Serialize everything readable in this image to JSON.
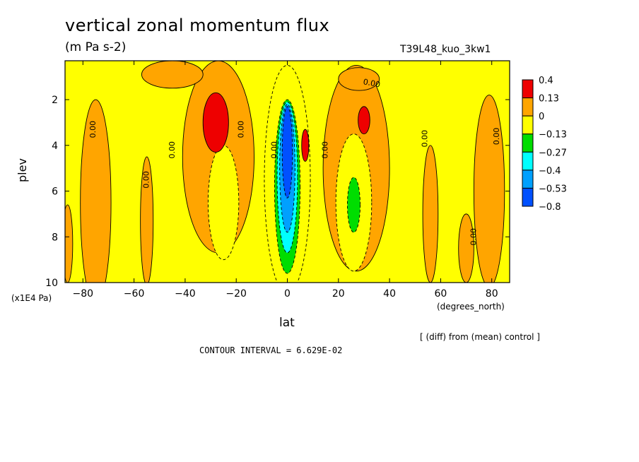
{
  "chart_data": {
    "type": "heatmap",
    "title": "vertical zonal momentum flux",
    "units": "(m Pa s-2)",
    "run_label": "T39L48_kuo_3kw1",
    "xlabel": "lat",
    "x_unit_label": "(degrees_north)",
    "ylabel": "plev",
    "y_unit_label": "(x1E4 Pa)",
    "note": "[ (diff) from (mean) control ]",
    "contour_interval_label": "CONTOUR INTERVAL = 6.629E-02",
    "xlim": [
      -87,
      87
    ],
    "ylim": [
      10,
      0.3
    ],
    "x_ticks": [
      -80,
      -60,
      -40,
      -20,
      0,
      20,
      40,
      60,
      80
    ],
    "x_tick_labels": [
      "−80",
      "−60",
      "−40",
      "−20",
      "0",
      "20",
      "40",
      "60",
      "80"
    ],
    "y_ticks": [
      2,
      4,
      6,
      8,
      10
    ],
    "y_tick_labels": [
      "2",
      "4",
      "6",
      "8",
      "10"
    ],
    "colorbar": {
      "labels": [
        "0.4",
        "0.13",
        "0",
        "−0.13",
        "−0.27",
        "−0.4",
        "−0.53",
        "−0.8"
      ],
      "colors": [
        "#ee0000",
        "#ffa500",
        "#ffff00",
        "#00dd00",
        "#00ffff",
        "#00a0ff",
        "#0050ff"
      ]
    },
    "contour_labels": [
      {
        "text": "0.00",
        "lat": -76,
        "plev": 3.3,
        "rot": -90
      },
      {
        "text": "0.00",
        "lat": -45,
        "plev": 4.2,
        "rot": -90
      },
      {
        "text": "0.00",
        "lat": -55,
        "plev": 5.5,
        "rot": -90
      },
      {
        "text": "0.00",
        "lat": -18,
        "plev": 3.3,
        "rot": -90
      },
      {
        "text": "0.00",
        "lat": -5,
        "plev": 4.2,
        "rot": -90
      },
      {
        "text": "0.00",
        "lat": 15,
        "plev": 4.2,
        "rot": -90
      },
      {
        "text": "0.00",
        "lat": 33,
        "plev": 1.3,
        "rot": 10
      },
      {
        "text": "0.00",
        "lat": 54,
        "plev": 3.7,
        "rot": -90
      },
      {
        "text": "0.00",
        "lat": 82,
        "plev": 3.6,
        "rot": -90
      },
      {
        "text": "0.00",
        "lat": 73,
        "plev": 8.0,
        "rot": -90
      }
    ],
    "features": [
      {
        "range": "0 to 0.13",
        "fill": "#ffa500",
        "lat": -27,
        "plev": 4.5,
        "half_width_deg": 14,
        "half_depth": 4.2
      },
      {
        "range": "0 to 0.13",
        "fill": "#ffa500",
        "lat": 27,
        "plev": 5.0,
        "half_width_deg": 13,
        "half_depth": 4.5
      },
      {
        "range": "0 to 0.13",
        "fill": "#ffa500",
        "lat": -75,
        "plev": 6.5,
        "half_width_deg": 6,
        "half_depth": 4.5
      },
      {
        "range": "0 to 0.13",
        "fill": "#ffa500",
        "lat": 79,
        "plev": 6.0,
        "half_width_deg": 6,
        "half_depth": 4.2
      },
      {
        "range": "0 to 0.13",
        "fill": "#ffa500",
        "lat": 56,
        "plev": 7.0,
        "half_width_deg": 3,
        "half_depth": 3.0
      },
      {
        "range": "0 to 0.13",
        "fill": "#ffa500",
        "lat": 70,
        "plev": 8.5,
        "half_width_deg": 3,
        "half_depth": 1.5
      },
      {
        "range": "0 to 0.13",
        "fill": "#ffa500",
        "lat": -55,
        "plev": 7.3,
        "half_width_deg": 2.5,
        "half_depth": 2.8
      },
      {
        "range": "0 to 0.13",
        "fill": "#ffa500",
        "lat": -45,
        "plev": 0.9,
        "half_width_deg": 12,
        "half_depth": 0.6
      },
      {
        "range": "0 to 0.13",
        "fill": "#ffa500",
        "lat": 28,
        "plev": 1.1,
        "half_width_deg": 8,
        "half_depth": 0.5
      },
      {
        "range": "0 to 0.13",
        "fill": "#ffa500",
        "lat": -86,
        "plev": 8.3,
        "half_width_deg": 2,
        "half_depth": 1.7
      },
      {
        "range": "−0.13 to 0",
        "fill": "#ffff00",
        "lat": -25,
        "plev": 6.5,
        "half_width_deg": 6,
        "half_depth": 2.5
      },
      {
        "range": "−0.13 to 0",
        "fill": "#ffff00",
        "lat": 26,
        "plev": 6.5,
        "half_width_deg": 7,
        "half_depth": 3.0
      },
      {
        "range": "−0.13 to 0",
        "fill": "#ffff00",
        "lat": 0,
        "plev": 5.5,
        "half_width_deg": 9,
        "half_depth": 5.0
      },
      {
        "range": "0.13 to 0.4",
        "fill": "#ee0000",
        "lat": -28,
        "plev": 3.0,
        "half_width_deg": 5,
        "half_depth": 1.3
      },
      {
        "range": "0.13 to 0.4",
        "fill": "#ee0000",
        "lat": 30,
        "plev": 2.9,
        "half_width_deg": 2.3,
        "half_depth": 0.6
      },
      {
        "range": "0.13 to 0.4",
        "fill": "#ee0000",
        "lat": 7,
        "plev": 4.0,
        "half_width_deg": 1.4,
        "half_depth": 0.7
      },
      {
        "range": "−0.27 to −0.13",
        "fill": "#00dd00",
        "lat": 26,
        "plev": 6.6,
        "half_width_deg": 2.5,
        "half_depth": 1.2
      },
      {
        "range": "−0.27 to −0.13",
        "fill": "#00dd00",
        "lat": 0,
        "plev": 5.8,
        "half_width_deg": 5,
        "half_depth": 3.8
      },
      {
        "range": "−0.4 to −0.27",
        "fill": "#00ffff",
        "lat": 0,
        "plev": 5.4,
        "half_width_deg": 4,
        "half_depth": 3.3
      },
      {
        "range": "−0.53 to −0.4",
        "fill": "#00a0ff",
        "lat": 0,
        "plev": 5.0,
        "half_width_deg": 3,
        "half_depth": 2.8
      },
      {
        "range": "−0.8 to −0.53",
        "fill": "#0050ff",
        "lat": 0,
        "plev": 4.3,
        "half_width_deg": 2,
        "half_depth": 2.0
      }
    ]
  }
}
